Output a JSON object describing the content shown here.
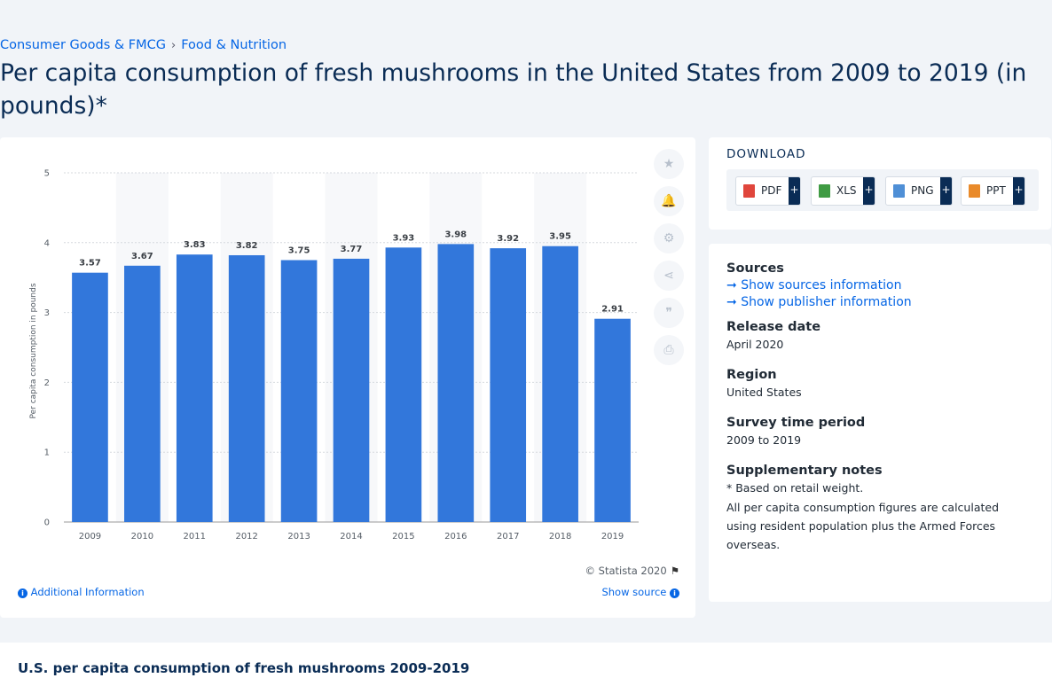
{
  "breadcrumb": [
    "Consumer Goods & FMCG",
    "Food & Nutrition"
  ],
  "page_title": "Per capita consumption of fresh mushrooms in the United States from 2009 to 2019 (in pounds)*",
  "chart_data": {
    "type": "bar",
    "categories": [
      "2009",
      "2010",
      "2011",
      "2012",
      "2013",
      "2014",
      "2015",
      "2016",
      "2017",
      "2018",
      "2019"
    ],
    "values": [
      3.57,
      3.67,
      3.83,
      3.82,
      3.75,
      3.77,
      3.93,
      3.98,
      3.92,
      3.95,
      2.91
    ],
    "value_labels": [
      "3.57",
      "3.67",
      "3.83",
      "3.82",
      "3.75",
      "3.77",
      "3.93",
      "3.98",
      "3.92",
      "3.95",
      "2.91"
    ],
    "yticks": [
      "0",
      "1",
      "2",
      "3",
      "4",
      "5"
    ],
    "ylim": [
      0,
      5
    ],
    "ylabel": "Per capita consumption in pounds",
    "xlabel": "",
    "bar_color": "#3277db",
    "grid": true,
    "legend": false
  },
  "tools": [
    {
      "icon": "star-icon",
      "glyph": "★",
      "name": "favorite"
    },
    {
      "icon": "bell-icon",
      "glyph": "🔔",
      "name": "notification"
    },
    {
      "icon": "gear-icon",
      "glyph": "⚙",
      "name": "settings"
    },
    {
      "icon": "share-icon",
      "glyph": "⋖",
      "name": "share"
    },
    {
      "icon": "quote-icon",
      "glyph": "❞",
      "name": "cite"
    },
    {
      "icon": "print-icon",
      "glyph": "⎙",
      "name": "print"
    }
  ],
  "credit": "© Statista 2020",
  "additional_info": "Additional Information",
  "show_source": "Show source",
  "download": {
    "title": "DOWNLOAD",
    "buttons": [
      {
        "label": "PDF",
        "color": "#e0463c",
        "icon": "pdf-file-icon"
      },
      {
        "label": "XLS",
        "color": "#3f9b43",
        "icon": "xls-file-icon"
      },
      {
        "label": "PNG",
        "color": "#4f8fd6",
        "icon": "png-file-icon"
      },
      {
        "label": "PPT",
        "color": "#e98a2a",
        "icon": "ppt-file-icon"
      }
    ],
    "plus": "+"
  },
  "info": {
    "sources_label": "Sources",
    "show_sources": "Show sources information",
    "show_publisher": "Show publisher information",
    "release_label": "Release date",
    "release_value": "April 2020",
    "region_label": "Region",
    "region_value": "United States",
    "survey_label": "Survey time period",
    "survey_value": "2009 to 2019",
    "supp_label": "Supplementary notes",
    "supp_note1": "* Based on retail weight.",
    "supp_note2": "All per capita consumption figures are calculated using resident population plus the Armed Forces overseas."
  },
  "bottom_title": "U.S. per capita consumption of fresh mushrooms 2009-2019"
}
